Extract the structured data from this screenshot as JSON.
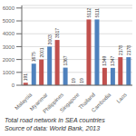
{
  "chart_data": {
    "type": "bar",
    "categories": [
      "Malaysia",
      "Myanmar",
      "Philippines",
      "Singapore",
      "Thailand",
      "Cambodia",
      "Laos"
    ],
    "series": [
      {
        "color": "#C0504D",
        "values": [
          191,
          2001,
          3517,
          19,
          5112,
          1349,
          2178
        ]
      },
      {
        "color": "#4F81BD",
        "values": [
          1675,
          3003,
          1367,
          19,
          5111,
          1347,
          2178
        ]
      }
    ],
    "ylim": [
      0,
      6200
    ],
    "yticks": [
      0,
      1000,
      2000,
      3000,
      4000,
      5000,
      6000
    ],
    "grid": true,
    "data_labels": true,
    "annotations": [
      "Total road network in SEA countries",
      "Source of data: World Bank, 2013"
    ]
  }
}
